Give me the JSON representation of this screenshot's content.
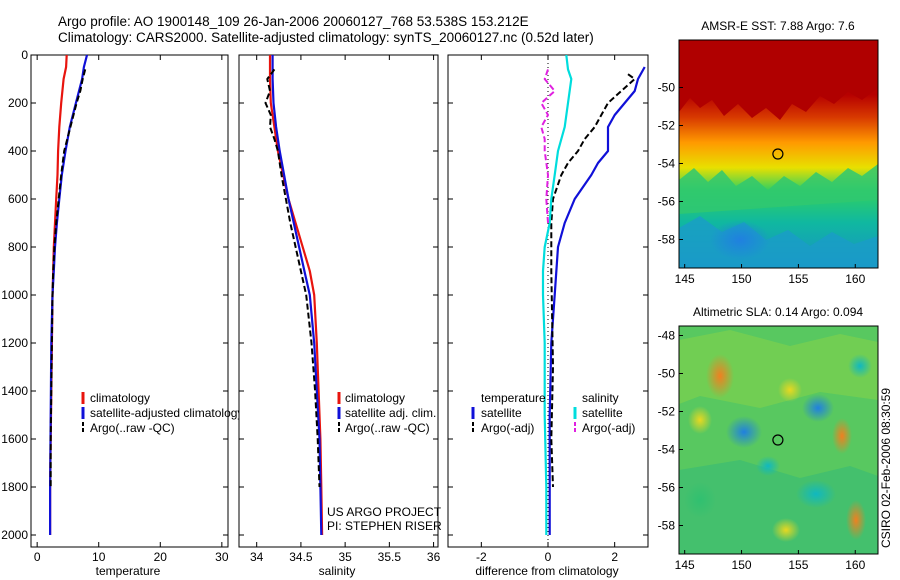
{
  "header": {
    "line1": "Argo profile: AO 1900148_109 26-Jan-2006 20060127_768 53.538S 153.212E",
    "line2": "Climatology: CARS2000. Satellite-adjusted climatology: synTS_20060127.nc (0.52d later)"
  },
  "footer": {
    "stamp": "CSIRO 02-Feb-2006 08:30:59"
  },
  "colors": {
    "climatology": "#e8140e",
    "satellite": "#1010d8",
    "argo": "#000000",
    "sat_salinity": "#00dddd",
    "argo_salinity": "#e020e0"
  },
  "chart_data": [
    {
      "id": "temperature",
      "type": "line",
      "xlabel": "temperature",
      "xlim": [
        -1,
        31
      ],
      "ylim": [
        2050,
        0
      ],
      "xticks": [
        0,
        10,
        20,
        30
      ],
      "yticks": [
        0,
        200,
        400,
        600,
        800,
        1000,
        1200,
        1400,
        1600,
        1800,
        2000
      ],
      "legend": {
        "placement": "lower-right",
        "entries": [
          "climatology",
          "satellite-adjusted climatology",
          "Argo(..raw -QC)"
        ]
      },
      "series": [
        {
          "name": "climatology",
          "color": "climatology",
          "dash": false,
          "x": [
            4.8,
            4.7,
            4.3,
            3.9,
            3.6,
            3.4,
            3.3,
            3.1,
            2.9,
            2.7,
            2.6,
            2.5,
            2.4,
            2.3,
            2.2,
            2.1,
            2.1
          ],
          "y": [
            0,
            50,
            100,
            200,
            300,
            400,
            500,
            600,
            700,
            800,
            900,
            1000,
            1200,
            1400,
            1600,
            1800,
            2000
          ]
        },
        {
          "name": "satellite-adjusted climatology",
          "color": "satellite",
          "dash": false,
          "x": [
            8.1,
            7.6,
            7.3,
            6.8,
            6.3,
            5.3,
            4.6,
            4.0,
            3.6,
            3.2,
            2.9,
            2.7,
            2.5,
            2.3,
            2.2,
            2.1,
            2.1
          ],
          "y": [
            0,
            50,
            100,
            150,
            200,
            300,
            400,
            500,
            600,
            700,
            800,
            900,
            1000,
            1200,
            1500,
            1800,
            2000
          ]
        },
        {
          "name": "Argo(..raw -QC)",
          "color": "argo",
          "dash": true,
          "x": [
            7.8,
            7.4,
            7.0,
            6.4,
            5.9,
            5.4,
            4.9,
            4.4,
            3.9,
            3.5,
            3.1,
            2.8,
            2.6,
            2.5,
            2.4,
            2.3,
            2.2,
            2.2
          ],
          "y": [
            60,
            100,
            150,
            200,
            250,
            300,
            350,
            400,
            500,
            600,
            700,
            800,
            900,
            1000,
            1200,
            1400,
            1600,
            1800
          ]
        }
      ]
    },
    {
      "id": "salinity",
      "type": "line",
      "xlabel": "salinity",
      "xlim": [
        33.8,
        36.05
      ],
      "ylim": [
        2050,
        0
      ],
      "xticks": [
        34,
        34.5,
        35,
        35.5,
        36
      ],
      "legend": {
        "placement": "lower-right",
        "entries": [
          "climatology",
          "satellite adj. clim.",
          "Argo(..raw -QC)"
        ]
      },
      "annotations": [
        "US ARGO PROJECT",
        "PI: STEPHEN RISER"
      ],
      "series": [
        {
          "name": "climatology",
          "color": "climatology",
          "dash": false,
          "x": [
            34.15,
            34.15,
            34.16,
            34.2,
            34.24,
            34.3,
            34.36,
            34.44,
            34.52,
            34.6,
            34.65,
            34.68,
            34.7,
            34.72,
            34.73,
            34.74
          ],
          "y": [
            0,
            100,
            200,
            300,
            400,
            500,
            600,
            700,
            800,
            900,
            1000,
            1200,
            1400,
            1600,
            1800,
            2000
          ]
        },
        {
          "name": "satellite adj. clim.",
          "color": "satellite",
          "dash": false,
          "x": [
            34.18,
            34.18,
            34.19,
            34.22,
            34.26,
            34.31,
            34.36,
            34.42,
            34.48,
            34.54,
            34.6,
            34.65,
            34.68,
            34.71,
            34.73
          ],
          "y": [
            0,
            100,
            200,
            300,
            400,
            500,
            600,
            700,
            800,
            900,
            1000,
            1200,
            1400,
            1600,
            2000
          ]
        },
        {
          "name": "Argo(..raw -QC)",
          "color": "argo",
          "dash": true,
          "x": [
            34.2,
            34.12,
            34.15,
            34.1,
            34.16,
            34.15,
            34.2,
            34.24,
            34.28,
            34.33,
            34.38,
            34.44,
            34.5,
            34.56,
            34.62,
            34.66,
            34.69,
            34.71
          ],
          "y": [
            60,
            100,
            150,
            200,
            250,
            300,
            350,
            400,
            500,
            600,
            700,
            800,
            900,
            1000,
            1200,
            1400,
            1600,
            1800
          ]
        }
      ]
    },
    {
      "id": "difference",
      "type": "line",
      "xlabel": "difference from climatology",
      "xlim": [
        -3,
        3
      ],
      "ylim": [
        2050,
        0
      ],
      "xticks": [
        -2,
        0,
        2
      ],
      "legend": {
        "placement": "lower-center",
        "columns": [
          {
            "heading": "temperature",
            "entries": [
              "satellite",
              "Argo(-adj)"
            ]
          },
          {
            "heading": "salinity",
            "entries": [
              "satellite",
              "Argo(-adj)"
            ]
          }
        ]
      },
      "series": [
        {
          "name": "temperature satellite",
          "color": "satellite",
          "dash": false,
          "x": [
            2.9,
            2.7,
            2.6,
            2.3,
            2.0,
            1.8,
            1.8,
            1.5,
            1.3,
            0.8,
            0.5,
            0.3,
            0.2,
            0.1,
            0.05,
            0.05,
            0.05
          ],
          "y": [
            50,
            100,
            150,
            200,
            250,
            300,
            400,
            450,
            500,
            600,
            700,
            800,
            1000,
            1200,
            1500,
            1800,
            2000
          ]
        },
        {
          "name": "temperature Argo(-adj)",
          "color": "argo",
          "dash": true,
          "x": [
            2.4,
            2.6,
            2.2,
            1.8,
            1.6,
            1.4,
            1.1,
            0.9,
            0.6,
            0.4,
            0.15,
            0.1,
            0.1,
            0.15,
            0.1,
            0.15
          ],
          "y": [
            80,
            100,
            150,
            200,
            250,
            300,
            350,
            400,
            450,
            500,
            600,
            700,
            900,
            1300,
            1600,
            1800
          ]
        },
        {
          "name": "salinity satellite",
          "color": "sat_salinity",
          "dash": false,
          "x": [
            0.55,
            0.6,
            0.7,
            0.6,
            0.5,
            0.3,
            0.2,
            0.1,
            0.05,
            -0.1,
            -0.15,
            -0.15,
            -0.1,
            -0.1,
            -0.05,
            -0.05
          ],
          "y": [
            0,
            60,
            100,
            200,
            300,
            400,
            500,
            600,
            700,
            800,
            900,
            1000,
            1200,
            1500,
            1800,
            2000
          ]
        },
        {
          "name": "salinity Argo(-adj)",
          "color": "argo_salinity",
          "dash": true,
          "x": [
            0.0,
            -0.1,
            0.2,
            -0.2,
            0.0,
            -0.2,
            -0.1,
            -0.1,
            0.0,
            -0.05,
            0.0
          ],
          "y": [
            60,
            100,
            150,
            200,
            250,
            300,
            350,
            400,
            500,
            600,
            700
          ]
        }
      ]
    },
    {
      "id": "sst_map",
      "type": "heatmap",
      "title": "AMSR-E SST: 7.88  Argo: 7.6",
      "xlim": [
        144.5,
        162
      ],
      "ylim": [
        -59.5,
        -47.5
      ],
      "xticks": [
        145,
        150,
        155,
        160
      ],
      "yticks": [
        -50,
        -52,
        -54,
        -56,
        -58
      ],
      "marker": {
        "lon": 153.2,
        "lat": -53.5
      }
    },
    {
      "id": "sla_map",
      "type": "heatmap",
      "title": "Altimetric SLA: 0.14  Argo: 0.094",
      "xlim": [
        144.5,
        162
      ],
      "ylim": [
        -59.5,
        -47.5
      ],
      "xticks": [
        145,
        150,
        155,
        160
      ],
      "yticks": [
        -48,
        -50,
        -52,
        -54,
        -56,
        -58
      ],
      "marker": {
        "lon": 153.2,
        "lat": -53.5
      }
    }
  ]
}
